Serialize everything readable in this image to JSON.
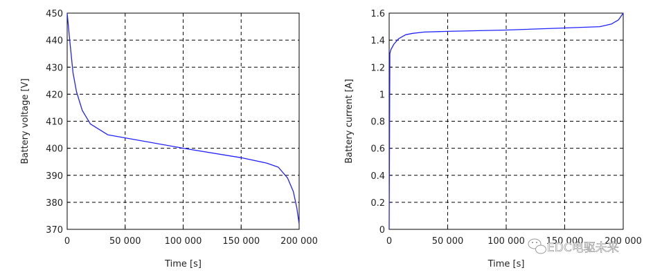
{
  "chart_data": [
    {
      "type": "line",
      "title": "",
      "xlabel": "Time [s]",
      "ylabel": "Battery voltage [V]",
      "xlim": [
        0,
        200000
      ],
      "ylim": [
        370,
        450
      ],
      "grid": true,
      "line_color": "#1f1fff",
      "x_ticks": [
        0,
        50000,
        100000,
        150000,
        200000
      ],
      "x_tick_labels": [
        "0",
        "50 000",
        "100 000",
        "150 000",
        "200 000"
      ],
      "y_ticks": [
        370,
        380,
        390,
        400,
        410,
        420,
        430,
        440,
        450
      ],
      "y_tick_labels": [
        "370",
        "380",
        "390",
        "400",
        "410",
        "420",
        "430",
        "440",
        "450"
      ],
      "series": [
        {
          "x": [
            0,
            2000,
            5000,
            8000,
            13000,
            20000,
            35000,
            100000,
            150000,
            172000,
            182000,
            190000,
            195000,
            198000,
            200000
          ],
          "y": [
            450,
            441,
            428,
            421,
            414,
            409,
            405,
            400,
            396.5,
            394.5,
            393,
            389,
            384,
            378,
            372
          ]
        }
      ]
    },
    {
      "type": "line",
      "title": "",
      "xlabel": "Time [s]",
      "ylabel": "Battery current [A]",
      "xlim": [
        0,
        200000
      ],
      "ylim": [
        0,
        1.6
      ],
      "grid": true,
      "line_color": "#1f1fff",
      "x_ticks": [
        0,
        50000,
        100000,
        150000,
        200000
      ],
      "x_tick_labels": [
        "0",
        "50 000",
        "100 000",
        "150 000",
        "200 000"
      ],
      "y_ticks": [
        0,
        0.2,
        0.4,
        0.6,
        0.8,
        1,
        1.2,
        1.4,
        1.6
      ],
      "y_tick_labels": [
        "0",
        "0.2",
        "0.4",
        "0.6",
        "0.8",
        "1",
        "1.2",
        "1.4",
        "1.6"
      ],
      "series": [
        {
          "x": [
            0,
            600,
            1500,
            4000,
            8000,
            14000,
            20000,
            30000,
            50000,
            100000,
            150000,
            180000,
            190000,
            196000,
            200000
          ],
          "y": [
            0,
            1.3,
            1.33,
            1.37,
            1.41,
            1.44,
            1.45,
            1.46,
            1.465,
            1.475,
            1.49,
            1.5,
            1.52,
            1.55,
            1.6
          ]
        }
      ]
    }
  ],
  "watermark": "EDC电驱未来"
}
